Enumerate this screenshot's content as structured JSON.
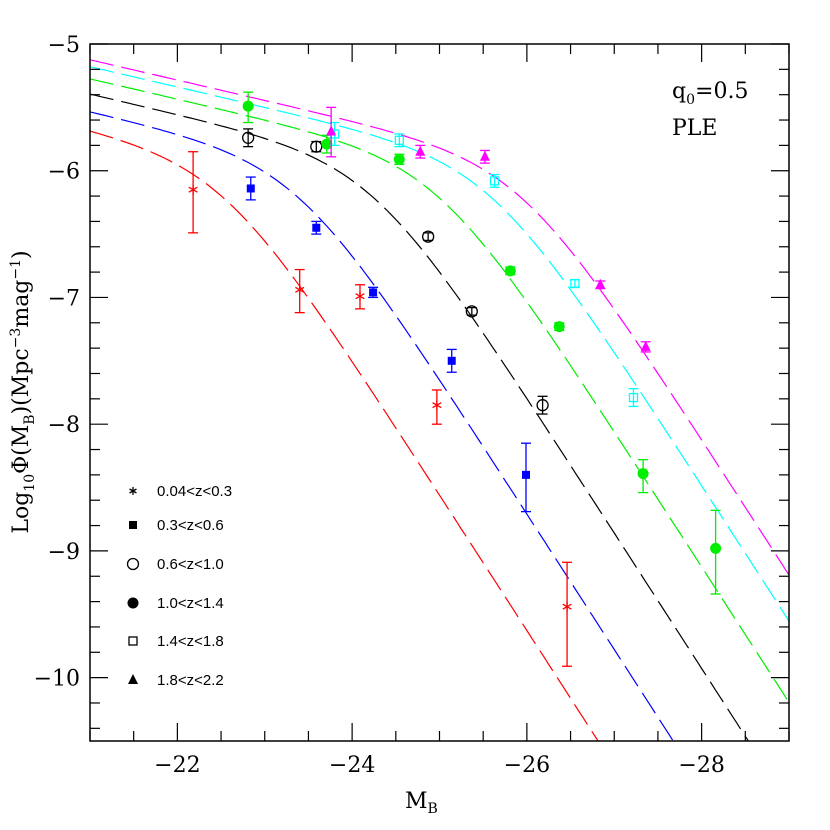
{
  "chart_data": {
    "type": "scatter",
    "xlabel": "M",
    "xlabel_sub": "B",
    "ylabel_parts": [
      "Log",
      "10",
      "Φ(M",
      "B",
      ")(Mpc",
      "−3",
      "mag",
      "−1",
      ")"
    ],
    "xlim": [
      -21,
      -29
    ],
    "ylim": [
      -10.5,
      -5
    ],
    "xticks": [
      -22,
      -24,
      -26,
      -28
    ],
    "xtick_labels": [
      "−22",
      "−24",
      "−26",
      "−28"
    ],
    "yticks": [
      -5,
      -6,
      -7,
      -8,
      -9,
      -10
    ],
    "ytick_labels": [
      "−5",
      "−6",
      "−7",
      "−8",
      "−9",
      "−10"
    ],
    "annotations": {
      "q0_label": "q",
      "q0_sub": "0",
      "q0_value": "=0.5",
      "model": "PLE"
    },
    "legend_placement": "bottom-left",
    "model_curves": {
      "style": "dashed",
      "form": "double power law, pure luminosity evolution",
      "log_phi_star": -5.915,
      "m_star_base": -22.53,
      "faint_slope": 0.16,
      "bright_slope": 1.07
    },
    "series": [
      {
        "name": "0.04<z<0.3",
        "marker": "asterisk",
        "color": "#ff0000",
        "curve_shift": 0,
        "points": [
          [
            -22.18,
            -6.15,
            -6.49,
            -5.85
          ],
          [
            -23.4,
            -6.94,
            -7.12,
            -6.78
          ],
          [
            -24.09,
            -6.99,
            -7.09,
            -6.9
          ],
          [
            -24.97,
            -7.85,
            -8.0,
            -7.73
          ],
          [
            -26.46,
            -9.44,
            -9.91,
            -9.09
          ]
        ]
      },
      {
        "name": "0.3<z<0.6",
        "marker": "filled-square",
        "color": "#0000ff",
        "curve_shift": 0.86,
        "points": [
          [
            -22.84,
            -6.14,
            -6.23,
            -6.05
          ],
          [
            -23.59,
            -6.45,
            -6.5,
            -6.4
          ],
          [
            -24.24,
            -6.96,
            -7.0,
            -6.92
          ],
          [
            -25.14,
            -7.5,
            -7.59,
            -7.41
          ],
          [
            -25.99,
            -8.4,
            -8.69,
            -8.15
          ]
        ]
      },
      {
        "name": "0.6<z<1.0",
        "marker": "open-circle",
        "color": "#000000",
        "curve_shift": 1.72,
        "points": [
          [
            -22.81,
            -5.74,
            -5.81,
            -5.67
          ],
          [
            -23.59,
            -5.81,
            -5.85,
            -5.77
          ],
          [
            -24.87,
            -6.52,
            -6.55,
            -6.49
          ],
          [
            -25.37,
            -7.11,
            -7.14,
            -7.08
          ],
          [
            -26.18,
            -7.85,
            -7.92,
            -7.78
          ]
        ]
      },
      {
        "name": "1.0<z<1.4",
        "marker": "filled-circle",
        "color": "#00ee00",
        "curve_shift": 2.47,
        "points": [
          [
            -22.81,
            -5.49,
            -5.62,
            -5.38
          ],
          [
            -23.71,
            -5.79,
            -5.86,
            -5.72
          ],
          [
            -24.54,
            -5.91,
            -5.95,
            -5.87
          ],
          [
            -25.81,
            -6.79,
            -6.82,
            -6.76
          ],
          [
            -26.37,
            -7.23,
            -7.26,
            -7.2
          ],
          [
            -27.33,
            -8.39,
            -8.54,
            -8.28
          ],
          [
            -28.16,
            -8.98,
            -9.34,
            -8.68
          ]
        ]
      },
      {
        "name": "1.4<z<1.8",
        "marker": "open-square",
        "color": "#00ffff",
        "curve_shift": 3.07,
        "points": [
          [
            -23.8,
            -5.71,
            -5.8,
            -5.62
          ],
          [
            -24.54,
            -5.76,
            -5.81,
            -5.71
          ],
          [
            -25.63,
            -6.08,
            -6.13,
            -6.03
          ],
          [
            -26.55,
            -6.89,
            -6.92,
            -6.86
          ],
          [
            -27.22,
            -7.79,
            -7.86,
            -7.72
          ]
        ]
      },
      {
        "name": "1.8<z<2.2",
        "marker": "filled-triangle",
        "color": "#ff00ff",
        "curve_shift": 3.41,
        "points": [
          [
            -23.76,
            -5.69,
            -5.89,
            -5.5
          ],
          [
            -24.78,
            -5.85,
            -5.9,
            -5.8
          ],
          [
            -25.52,
            -5.89,
            -5.94,
            -5.84
          ],
          [
            -26.84,
            -6.9,
            -6.93,
            -6.87
          ],
          [
            -27.36,
            -7.39,
            -7.43,
            -7.35
          ]
        ]
      }
    ]
  }
}
